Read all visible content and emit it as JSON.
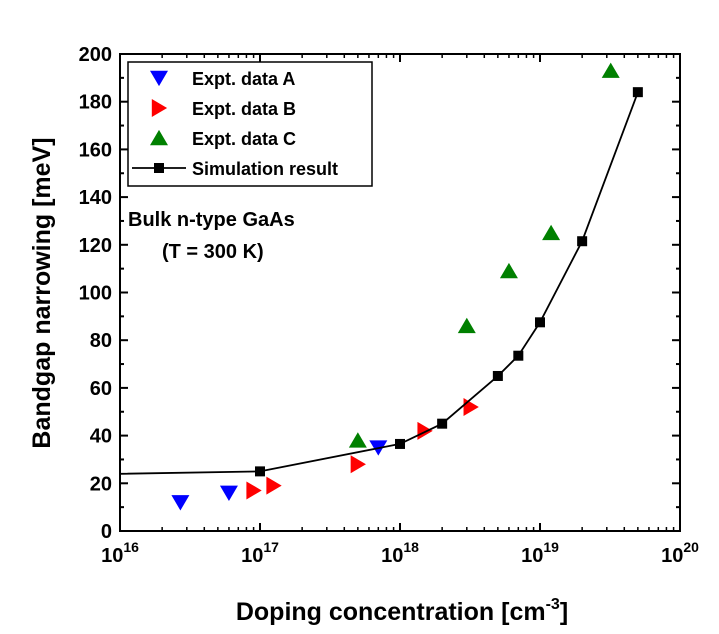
{
  "chart_data": {
    "type": "scatter",
    "title": "",
    "xlabel": "Doping concentration [cm",
    "xlabel_sup": "-3",
    "xlabel_end": "]",
    "ylabel": "Bandgap narrowing [meV]",
    "xscale": "log",
    "xlim": [
      1e+16,
      1e+20
    ],
    "ylim": [
      0,
      200
    ],
    "x_ticks": [
      {
        "base": "10",
        "exp": "16"
      },
      {
        "base": "10",
        "exp": "17"
      },
      {
        "base": "10",
        "exp": "18"
      },
      {
        "base": "10",
        "exp": "19"
      },
      {
        "base": "10",
        "exp": "20"
      }
    ],
    "y_ticks": [
      "0",
      "20",
      "40",
      "60",
      "80",
      "100",
      "120",
      "140",
      "160",
      "180",
      "200"
    ],
    "grid": false,
    "legend_position": "top-left",
    "annotations": [
      "Bulk n-type GaAs",
      "(T = 300 K)"
    ],
    "series": [
      {
        "name": "Expt. data A",
        "marker": "triangle-down",
        "color": "#0000ff",
        "x": [
          2.7e+16,
          6e+16,
          7e+17
        ],
        "y": [
          12,
          16,
          35
        ]
      },
      {
        "name": "Expt. data B",
        "marker": "triangle-right",
        "color": "#ff0000",
        "x": [
          9e+16,
          1.25e+17,
          5e+17,
          1.5e+18,
          3.2e+18
        ],
        "y": [
          17,
          19,
          28,
          42,
          52
        ]
      },
      {
        "name": "Expt. data C",
        "marker": "triangle-up",
        "color": "#008000",
        "x": [
          5e+17,
          3e+18,
          6e+18,
          1.2e+19,
          3.2e+19
        ],
        "y": [
          38,
          86,
          109,
          125,
          193
        ]
      },
      {
        "name": "Simulation result",
        "marker": "square",
        "line": true,
        "color": "#000000",
        "x": [
          1e+16,
          1e+17,
          1e+18,
          2e+18,
          5e+18,
          7e+18,
          1e+19,
          2e+19,
          5e+19
        ],
        "y": [
          24,
          25,
          36.5,
          45,
          65,
          73.5,
          87.5,
          121.5,
          184
        ],
        "marker_mask": [
          false,
          true,
          true,
          true,
          true,
          true,
          true,
          true,
          true
        ]
      }
    ]
  }
}
